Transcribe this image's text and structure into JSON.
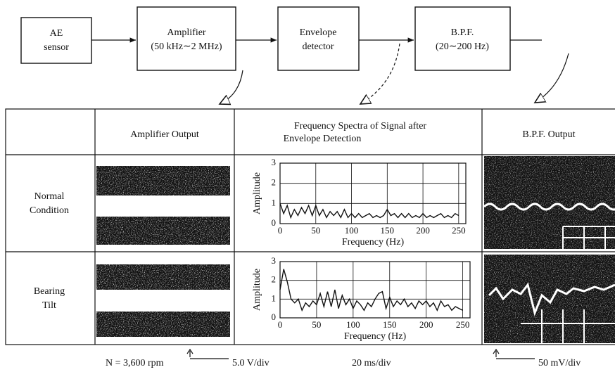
{
  "blocks": [
    {
      "lines": [
        "AE",
        "sensor"
      ]
    },
    {
      "lines": [
        "Amplifier",
        "(50 kHz∼2 MHz)"
      ]
    },
    {
      "lines": [
        "Envelope",
        "detector"
      ]
    },
    {
      "lines": [
        "B.P.F.",
        "(20∼200 Hz)"
      ]
    }
  ],
  "table": {
    "headers": {
      "amplifier": "Amplifier Output",
      "spectra": [
        "Frequency Spectra of Signal after",
        "Envelope Detection"
      ],
      "bpf": "B.P.F. Output"
    },
    "rows": [
      [
        "Normal",
        "Condition"
      ],
      [
        "Bearing",
        "Tilt"
      ]
    ]
  },
  "spectra": [
    {
      "ylabel": "Amplitude",
      "xlabel": "Frequency (Hz)",
      "xlim": [
        0,
        260
      ],
      "ylim": [
        0,
        3
      ],
      "xticks": [
        0,
        50,
        100,
        150,
        200,
        250
      ],
      "yticks": [
        0,
        1,
        2,
        3
      ],
      "grid": true,
      "x": [
        0,
        5,
        10,
        15,
        20,
        25,
        30,
        35,
        40,
        45,
        50,
        55,
        60,
        65,
        70,
        75,
        80,
        85,
        90,
        95,
        100,
        105,
        110,
        115,
        120,
        125,
        130,
        135,
        140,
        145,
        150,
        155,
        160,
        165,
        170,
        175,
        180,
        185,
        190,
        195,
        200,
        205,
        210,
        215,
        220,
        225,
        230,
        235,
        240,
        245,
        250
      ],
      "values": [
        1.0,
        0.5,
        0.9,
        0.3,
        0.7,
        0.4,
        0.8,
        0.5,
        0.9,
        0.4,
        0.9,
        0.4,
        0.7,
        0.3,
        0.6,
        0.4,
        0.6,
        0.3,
        0.7,
        0.3,
        0.5,
        0.3,
        0.5,
        0.3,
        0.4,
        0.5,
        0.3,
        0.4,
        0.3,
        0.4,
        0.7,
        0.4,
        0.5,
        0.3,
        0.5,
        0.3,
        0.5,
        0.3,
        0.4,
        0.3,
        0.5,
        0.3,
        0.4,
        0.3,
        0.4,
        0.5,
        0.3,
        0.4,
        0.3,
        0.5,
        0.4
      ]
    },
    {
      "ylabel": "Amplitude",
      "xlabel": "Frequency (Hz)",
      "xlim": [
        0,
        260
      ],
      "ylim": [
        0,
        3
      ],
      "xticks": [
        0,
        50,
        100,
        150,
        200,
        250
      ],
      "yticks": [
        0,
        1,
        2,
        3
      ],
      "grid": true,
      "x": [
        0,
        5,
        10,
        15,
        20,
        25,
        30,
        35,
        40,
        45,
        50,
        55,
        60,
        65,
        70,
        75,
        80,
        85,
        90,
        95,
        100,
        105,
        110,
        115,
        120,
        125,
        130,
        135,
        140,
        145,
        150,
        155,
        160,
        165,
        170,
        175,
        180,
        185,
        190,
        195,
        200,
        205,
        210,
        215,
        220,
        225,
        230,
        235,
        240,
        245,
        250
      ],
      "values": [
        1.5,
        2.6,
        1.9,
        1.0,
        0.8,
        1.0,
        0.4,
        0.8,
        0.6,
        0.9,
        0.7,
        1.3,
        0.6,
        1.4,
        0.6,
        1.5,
        0.5,
        1.2,
        0.7,
        1.0,
        0.5,
        0.9,
        0.7,
        0.4,
        0.8,
        0.6,
        1.0,
        1.3,
        1.4,
        0.5,
        1.1,
        0.6,
        0.9,
        0.7,
        1.0,
        0.6,
        0.8,
        0.5,
        0.9,
        0.7,
        0.9,
        0.6,
        0.8,
        0.4,
        0.9,
        0.6,
        0.7,
        0.4,
        0.6,
        0.5,
        0.4
      ]
    }
  ],
  "footer": [
    "N = 3,600 rpm",
    "5.0 V/div",
    "20 ms/div",
    "50 mV/div"
  ]
}
